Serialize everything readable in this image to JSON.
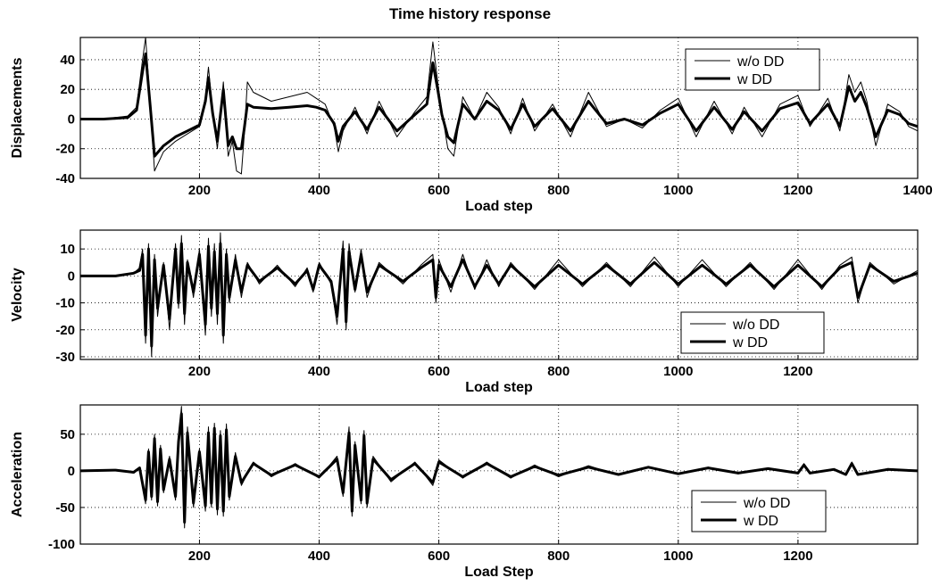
{
  "figure": {
    "title": "Time history response"
  },
  "chart_data": [
    {
      "type": "line",
      "id": "displacement",
      "ylabel": "Displacements",
      "xlabel": "Load step",
      "xlim": [
        1,
        1400
      ],
      "ylim": [
        -40,
        55
      ],
      "xticks": [
        200,
        400,
        600,
        800,
        1000,
        1200,
        1400
      ],
      "yticks": [
        -40,
        -20,
        0,
        20,
        40
      ],
      "grid": true,
      "legend_position": "top-right",
      "series": [
        {
          "name": "w/o DD",
          "style": "thin",
          "x": [
            1,
            40,
            80,
            95,
            105,
            110,
            118,
            125,
            140,
            160,
            180,
            200,
            210,
            215,
            222,
            230,
            240,
            248,
            255,
            262,
            270,
            275,
            280,
            290,
            320,
            350,
            380,
            395,
            410,
            425,
            432,
            440,
            460,
            480,
            500,
            530,
            560,
            580,
            590,
            598,
            605,
            615,
            625,
            640,
            660,
            680,
            700,
            720,
            740,
            760,
            790,
            820,
            850,
            880,
            910,
            940,
            970,
            1000,
            1030,
            1060,
            1090,
            1110,
            1140,
            1170,
            1200,
            1220,
            1250,
            1270,
            1285,
            1295,
            1305,
            1315,
            1330,
            1350,
            1370,
            1385,
            1400
          ],
          "y": [
            0,
            0,
            2,
            8,
            40,
            55,
            10,
            -35,
            -22,
            -15,
            -10,
            -5,
            15,
            35,
            5,
            -20,
            25,
            -25,
            -15,
            -35,
            -37,
            -10,
            25,
            18,
            12,
            15,
            18,
            14,
            10,
            -5,
            -22,
            -8,
            8,
            -10,
            12,
            -12,
            5,
            15,
            52,
            25,
            5,
            -20,
            -25,
            15,
            0,
            18,
            8,
            -10,
            14,
            -8,
            10,
            -12,
            18,
            -5,
            0,
            -6,
            6,
            14,
            -12,
            12,
            -10,
            8,
            -12,
            10,
            16,
            -5,
            14,
            -8,
            30,
            18,
            25,
            12,
            -18,
            10,
            5,
            -5,
            -8
          ]
        },
        {
          "name": "w DD",
          "style": "thick",
          "x": [
            1,
            40,
            80,
            95,
            105,
            110,
            118,
            125,
            140,
            160,
            180,
            200,
            210,
            215,
            222,
            230,
            240,
            248,
            255,
            262,
            270,
            275,
            280,
            290,
            320,
            350,
            380,
            395,
            410,
            425,
            432,
            440,
            460,
            480,
            500,
            530,
            560,
            580,
            590,
            598,
            605,
            615,
            625,
            640,
            660,
            680,
            700,
            720,
            740,
            760,
            790,
            820,
            850,
            880,
            910,
            940,
            970,
            1000,
            1030,
            1060,
            1090,
            1110,
            1140,
            1170,
            1200,
            1220,
            1250,
            1270,
            1285,
            1295,
            1305,
            1315,
            1330,
            1350,
            1370,
            1385,
            1400
          ],
          "y": [
            0,
            0,
            1,
            6,
            32,
            44,
            8,
            -25,
            -18,
            -12,
            -8,
            -4,
            12,
            28,
            4,
            -15,
            20,
            -18,
            -12,
            -20,
            -20,
            -6,
            10,
            8,
            7,
            8,
            9,
            8,
            6,
            -3,
            -15,
            -5,
            5,
            -7,
            8,
            -8,
            3,
            10,
            38,
            20,
            3,
            -12,
            -16,
            10,
            0,
            12,
            6,
            -7,
            10,
            -5,
            7,
            -8,
            12,
            -3,
            0,
            -4,
            4,
            10,
            -8,
            8,
            -7,
            5,
            -8,
            7,
            11,
            -3,
            10,
            -5,
            22,
            12,
            18,
            8,
            -12,
            6,
            3,
            -3,
            -5
          ]
        }
      ]
    },
    {
      "type": "line",
      "id": "velocity",
      "ylabel": "Velocity",
      "xlabel": "Load step",
      "xlim": [
        1,
        1400
      ],
      "ylim": [
        -31,
        17
      ],
      "xticks": [
        200,
        400,
        600,
        800,
        1000,
        1200
      ],
      "yticks": [
        -30,
        -20,
        -10,
        0,
        10
      ],
      "grid": true,
      "legend_position": "bottom-right",
      "series": [
        {
          "name": "w/o DD",
          "style": "thin",
          "x": [
            1,
            60,
            90,
            100,
            105,
            110,
            115,
            120,
            125,
            130,
            140,
            150,
            160,
            165,
            170,
            175,
            180,
            190,
            200,
            210,
            215,
            220,
            225,
            230,
            235,
            240,
            245,
            250,
            260,
            270,
            280,
            300,
            330,
            360,
            380,
            390,
            400,
            420,
            430,
            440,
            445,
            450,
            460,
            470,
            480,
            500,
            540,
            570,
            590,
            595,
            600,
            620,
            640,
            660,
            680,
            700,
            720,
            760,
            800,
            840,
            880,
            920,
            960,
            1000,
            1040,
            1080,
            1120,
            1160,
            1200,
            1240,
            1270,
            1290,
            1300,
            1320,
            1360,
            1400
          ],
          "y": [
            0,
            0,
            1,
            3,
            10,
            -25,
            12,
            -30,
            8,
            -15,
            5,
            -20,
            12,
            -12,
            15,
            -18,
            6,
            -8,
            10,
            -22,
            14,
            -15,
            12,
            -18,
            16,
            -25,
            10,
            -10,
            8,
            -8,
            5,
            -3,
            4,
            -4,
            3,
            -6,
            5,
            -3,
            -18,
            13,
            -20,
            12,
            -6,
            10,
            -8,
            5,
            -3,
            4,
            8,
            -10,
            6,
            -6,
            8,
            -5,
            6,
            -4,
            5,
            -5,
            6,
            -4,
            5,
            -4,
            7,
            -4,
            6,
            -4,
            5,
            -5,
            6,
            -5,
            4,
            7,
            -10,
            5,
            -3,
            2
          ]
        },
        {
          "name": "w DD",
          "style": "thick",
          "x": [
            1,
            60,
            90,
            100,
            105,
            110,
            115,
            120,
            125,
            130,
            140,
            150,
            160,
            165,
            170,
            175,
            180,
            190,
            200,
            210,
            215,
            220,
            225,
            230,
            235,
            240,
            245,
            250,
            260,
            270,
            280,
            300,
            330,
            360,
            380,
            390,
            400,
            420,
            430,
            440,
            445,
            450,
            460,
            470,
            480,
            500,
            540,
            570,
            590,
            595,
            600,
            620,
            640,
            660,
            680,
            700,
            720,
            760,
            800,
            840,
            880,
            920,
            960,
            1000,
            1040,
            1080,
            1120,
            1160,
            1200,
            1240,
            1270,
            1290,
            1300,
            1320,
            1360,
            1400
          ],
          "y": [
            0,
            0,
            1,
            2,
            8,
            -22,
            10,
            -26,
            6,
            -12,
            4,
            -16,
            10,
            -10,
            12,
            -14,
            5,
            -6,
            8,
            -18,
            11,
            -12,
            9,
            -14,
            12,
            -22,
            8,
            -8,
            6,
            -6,
            4,
            -2,
            3,
            -3,
            2,
            -5,
            4,
            -2,
            -15,
            10,
            -17,
            9,
            -5,
            8,
            -6,
            4,
            -2,
            3,
            6,
            -8,
            4,
            -4,
            6,
            -4,
            4,
            -3,
            4,
            -4,
            4,
            -3,
            4,
            -3,
            5,
            -3,
            4,
            -3,
            4,
            -4,
            4,
            -4,
            3,
            5,
            -8,
            4,
            -2,
            1
          ]
        }
      ]
    },
    {
      "type": "line",
      "id": "acceleration",
      "ylabel": "Acceleration",
      "xlabel": "Load Step",
      "xlim": [
        1,
        1400
      ],
      "ylim": [
        -100,
        90
      ],
      "xticks": [
        200,
        400,
        600,
        800,
        1000,
        1200
      ],
      "yticks": [
        -100,
        -50,
        0,
        50
      ],
      "grid": true,
      "legend_position": "bottom-right",
      "series": [
        {
          "name": "w/o DD",
          "style": "thin",
          "x": [
            1,
            60,
            90,
            100,
            110,
            115,
            120,
            125,
            130,
            135,
            140,
            150,
            160,
            165,
            170,
            175,
            180,
            190,
            200,
            210,
            215,
            220,
            225,
            230,
            235,
            240,
            245,
            250,
            260,
            270,
            290,
            320,
            360,
            400,
            430,
            440,
            450,
            455,
            460,
            470,
            475,
            480,
            490,
            520,
            560,
            590,
            600,
            640,
            680,
            720,
            760,
            800,
            850,
            900,
            950,
            1000,
            1050,
            1100,
            1150,
            1200,
            1210,
            1220,
            1260,
            1280,
            1290,
            1300,
            1350,
            1400
          ],
          "y": [
            0,
            1,
            -3,
            5,
            -45,
            30,
            -40,
            50,
            -48,
            35,
            -30,
            20,
            -40,
            45,
            88,
            -78,
            60,
            -50,
            30,
            -55,
            60,
            -50,
            65,
            -60,
            55,
            -62,
            64,
            -40,
            25,
            -20,
            12,
            -8,
            10,
            -10,
            20,
            -35,
            60,
            -62,
            40,
            -45,
            55,
            -50,
            20,
            -15,
            12,
            -20,
            15,
            -10,
            12,
            -10,
            8,
            -8,
            7,
            -6,
            6,
            -5,
            5,
            -4,
            4,
            -4,
            10,
            -4,
            3,
            -6,
            12,
            -6,
            3,
            0
          ]
        },
        {
          "name": "w DD",
          "style": "thick",
          "x": [
            1,
            60,
            90,
            100,
            110,
            115,
            120,
            125,
            130,
            135,
            140,
            150,
            160,
            165,
            170,
            175,
            180,
            190,
            200,
            210,
            215,
            220,
            225,
            230,
            235,
            240,
            245,
            250,
            260,
            270,
            290,
            320,
            360,
            400,
            430,
            440,
            450,
            455,
            460,
            470,
            475,
            480,
            490,
            520,
            560,
            590,
            600,
            640,
            680,
            720,
            760,
            800,
            850,
            900,
            950,
            1000,
            1050,
            1100,
            1150,
            1200,
            1210,
            1220,
            1260,
            1280,
            1290,
            1300,
            1350,
            1400
          ],
          "y": [
            0,
            1,
            -2,
            4,
            -40,
            26,
            -35,
            44,
            -42,
            30,
            -26,
            16,
            -35,
            40,
            78,
            -70,
            52,
            -44,
            26,
            -48,
            52,
            -44,
            58,
            -52,
            48,
            -55,
            56,
            -35,
            20,
            -16,
            10,
            -6,
            8,
            -8,
            16,
            -30,
            52,
            -55,
            35,
            -40,
            48,
            -44,
            16,
            -12,
            10,
            -16,
            12,
            -8,
            10,
            -8,
            6,
            -6,
            5,
            -5,
            5,
            -4,
            4,
            -3,
            3,
            -3,
            8,
            -3,
            2,
            -5,
            10,
            -5,
            2,
            0
          ]
        }
      ]
    }
  ]
}
